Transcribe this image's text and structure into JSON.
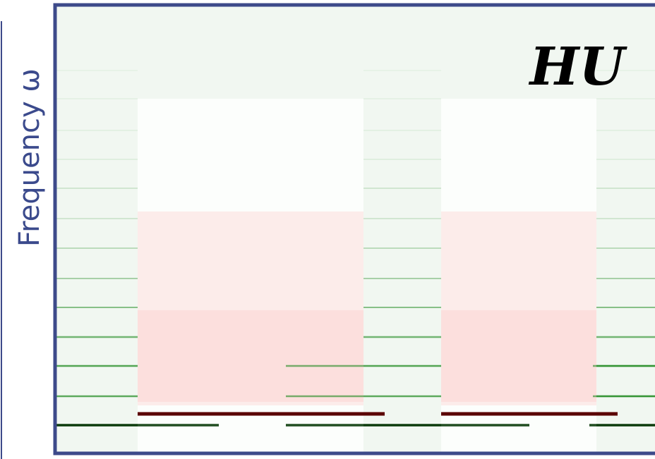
{
  "figure": {
    "y_label": "Frequency ω",
    "panel_label": "HU"
  }
}
